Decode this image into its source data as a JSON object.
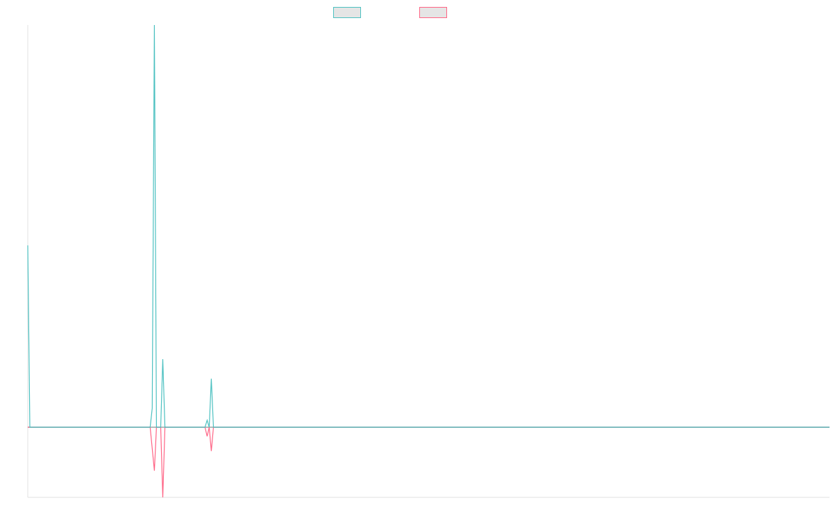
{
  "chart_data": {
    "type": "line",
    "title": "",
    "xlabel": "",
    "ylabel": "",
    "xlim": [
      0,
      380
    ],
    "ylim": [
      -1.0,
      5.73
    ],
    "grid": false,
    "legend": "top",
    "series": [
      {
        "color": "#4bc0c0",
        "points": [
          [
            0,
            2.59
          ],
          [
            1,
            0
          ],
          [
            58,
            0
          ],
          [
            59,
            0.27
          ],
          [
            60,
            5.73
          ],
          [
            61,
            0
          ],
          [
            63,
            0
          ],
          [
            64,
            0.97
          ],
          [
            65,
            0
          ],
          [
            84,
            0
          ],
          [
            85,
            0.1
          ],
          [
            86,
            0
          ],
          [
            87,
            0.69
          ],
          [
            88,
            0
          ],
          [
            380,
            0
          ]
        ]
      },
      {
        "color": "#ff6384",
        "points": [
          [
            0,
            0
          ],
          [
            58,
            0
          ],
          [
            60,
            -0.62
          ],
          [
            61,
            0
          ],
          [
            63,
            0
          ],
          [
            64,
            -1.0
          ],
          [
            65,
            0
          ],
          [
            84,
            0
          ],
          [
            85,
            -0.13
          ],
          [
            86,
            0
          ],
          [
            87,
            -0.34
          ],
          [
            88,
            0
          ],
          [
            380,
            0
          ]
        ]
      }
    ]
  },
  "legend_fill": "#e5e5e5",
  "axis_color": "#e0e0e0",
  "zero_line_color": "#9aa5a5"
}
